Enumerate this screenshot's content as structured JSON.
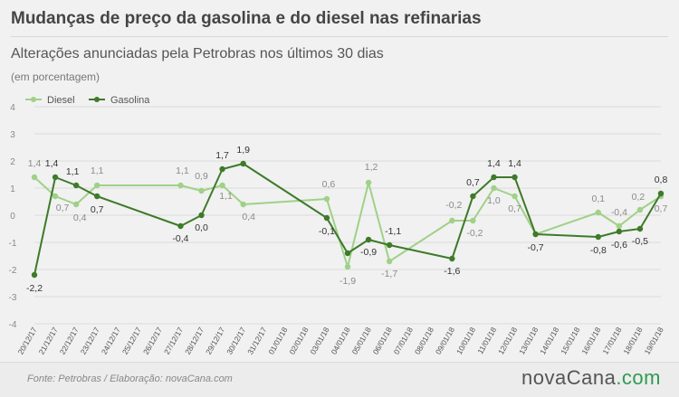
{
  "header": {
    "title": "Mudanças de preço da gasolina e do diesel nas refinarias",
    "subtitle": "Alterações anunciadas pela Petrobras nos últimos 30 dias",
    "unit": "(em porcentagem)"
  },
  "footer": {
    "source": "Fonte:  Petrobras  / Elaboração:  novaCana.com",
    "logo_main": "novaCana",
    "logo_suffix": ".com"
  },
  "colors": {
    "diesel": "#9fd187",
    "gasolina": "#3e7a2a",
    "grid": "#dcdcdc",
    "logo_accent": "#2f9a52"
  },
  "chart_data": {
    "type": "line",
    "categories": [
      "20/12/17",
      "21/12/17",
      "22/12/17",
      "23/12/17",
      "24/12/17",
      "25/12/17",
      "26/12/17",
      "27/12/17",
      "28/12/17",
      "29/12/17",
      "30/12/17",
      "31/12/17",
      "01/01/18",
      "02/01/18",
      "03/01/18",
      "04/01/18",
      "05/01/18",
      "06/01/18",
      "07/01/18",
      "08/01/18",
      "09/01/18",
      "10/01/18",
      "11/01/18",
      "12/01/18",
      "13/01/18",
      "14/01/18",
      "15/01/18",
      "16/01/18",
      "17/01/18",
      "18/01/18",
      "19/01/18"
    ],
    "ylim": [
      -4,
      4
    ],
    "yticks": [
      -4,
      -3,
      -2,
      -1,
      0,
      1,
      2,
      3,
      4
    ],
    "legend": "top-left",
    "grid": true,
    "series": [
      {
        "name": "Diesel",
        "points": [
          {
            "x": "20/12/17",
            "y": 1.4,
            "label": "1,4"
          },
          {
            "x": "20/12/17",
            "y": 0.7,
            "label": "0,7"
          },
          {
            "x": "22/12/17",
            "y": 0.4,
            "label": "0,4"
          },
          {
            "x": "23/12/17",
            "y": 1.1,
            "label": "1,1"
          },
          {
            "x": "27/12/17",
            "y": 1.1,
            "label": "1,1"
          },
          {
            "x": "28/12/17",
            "y": 0.9,
            "label": "0,9"
          },
          {
            "x": "29/12/17",
            "y": 1.1,
            "label": "1,1"
          },
          {
            "x": "30/12/17",
            "y": 0.4,
            "label": "0,4"
          },
          {
            "x": "03/01/18",
            "y": 0.6,
            "label": "0,6"
          },
          {
            "x": "04/01/18",
            "y": -1.9,
            "label": "-1,9"
          },
          {
            "x": "05/01/18",
            "y": 1.2,
            "label": "1,2"
          },
          {
            "x": "06/01/18",
            "y": -1.7,
            "label": "-1,7"
          },
          {
            "x": "10/01/18",
            "y": -0.2,
            "label": "-0,2"
          },
          {
            "x": "10/01/18",
            "y": -0.2,
            "label": "-0,2"
          },
          {
            "x": "11/01/18",
            "y": 1.0,
            "label": "1,0"
          },
          {
            "x": "12/01/18",
            "y": 0.7,
            "label": "0,7"
          },
          {
            "x": "13/01/18",
            "y": -0.7,
            "label": ""
          },
          {
            "x": "16/01/18",
            "y": 0.1,
            "label": "0,1"
          },
          {
            "x": "17/01/18",
            "y": -0.4,
            "label": "-0,4"
          },
          {
            "x": "18/01/18",
            "y": 0.2,
            "label": "0,2"
          },
          {
            "x": "19/01/18",
            "y": 0.7,
            "label": "0,7"
          }
        ]
      },
      {
        "name": "Gasolina",
        "points": [
          {
            "x": "20/12/17",
            "y": -2.2,
            "label": "-2,2"
          },
          {
            "x": "21/12/17",
            "y": 1.4,
            "label": "1,4"
          },
          {
            "x": "22/12/17",
            "y": 1.1,
            "label": "1,1"
          },
          {
            "x": "23/12/17",
            "y": 0.7,
            "label": "0,7"
          },
          {
            "x": "27/12/17",
            "y": -0.4,
            "label": "-0,4"
          },
          {
            "x": "28/12/17",
            "y": 0.0,
            "label": "0,0"
          },
          {
            "x": "29/12/17",
            "y": 1.7,
            "label": "1,7"
          },
          {
            "x": "30/12/17",
            "y": 1.9,
            "label": "1,9"
          },
          {
            "x": "03/01/18",
            "y": -0.1,
            "label": "-0,1"
          },
          {
            "x": "04/01/18",
            "y": -1.4,
            "label": ""
          },
          {
            "x": "05/01/18",
            "y": -0.9,
            "label": "-0,9"
          },
          {
            "x": "06/01/18",
            "y": -1.1,
            "label": "-1,1"
          },
          {
            "x": "09/01/18",
            "y": -1.6,
            "label": "-1,6"
          },
          {
            "x": "10/01/18",
            "y": 0.7,
            "label": "0,7"
          },
          {
            "x": "11/01/18",
            "y": 1.4,
            "label": "1,4"
          },
          {
            "x": "12/01/18",
            "y": 1.4,
            "label": "1,4"
          },
          {
            "x": "13/01/18",
            "y": -0.7,
            "label": "-0,7"
          },
          {
            "x": "16/01/18",
            "y": -0.8,
            "label": "-0,8"
          },
          {
            "x": "17/01/18",
            "y": -0.6,
            "label": "-0,6"
          },
          {
            "x": "18/01/18",
            "y": -0.5,
            "label": "-0,5"
          },
          {
            "x": "19/01/18",
            "y": 0.8,
            "label": "0,8"
          }
        ]
      }
    ]
  }
}
